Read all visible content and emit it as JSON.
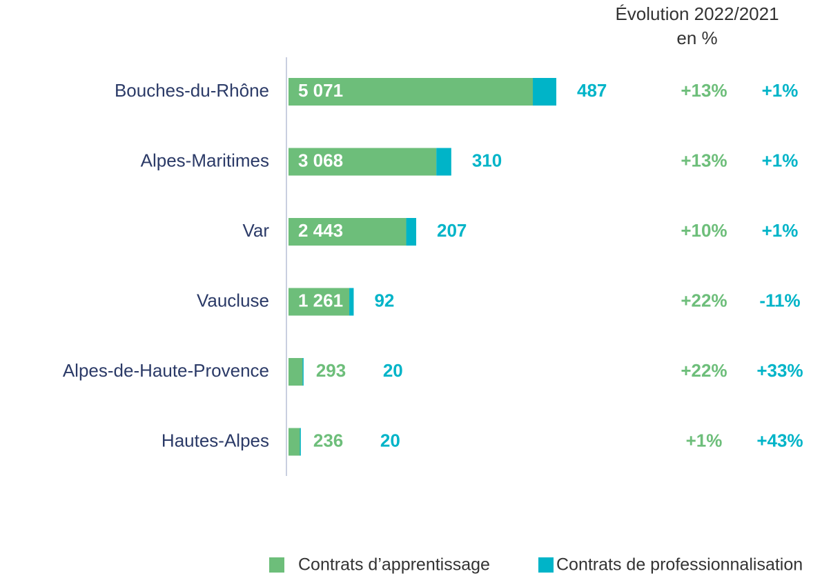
{
  "chart_data": {
    "type": "bar",
    "orientation": "horizontal",
    "stacked": true,
    "evolution_title": [
      "Évolution 2022/2021",
      "en %"
    ],
    "categories": [
      "Bouches-du-Rhône",
      "Alpes-Maritimes",
      "Var",
      "Vaucluse",
      "Alpes-de-Haute-Provence",
      "Hautes-Alpes"
    ],
    "series": [
      {
        "name": "Contrats d’apprentissage",
        "color": "#6dbe7a",
        "values": [
          5071,
          3068,
          2443,
          1261,
          293,
          236
        ],
        "value_labels": [
          "5 071",
          "3 068",
          "2 443",
          "1 261",
          "293",
          "236"
        ],
        "evolution_labels": [
          "+13%",
          "+13%",
          "+10%",
          "+22%",
          "+22%",
          "+1%"
        ]
      },
      {
        "name": "Contrats de professionnalisation",
        "color": "#00b4c8",
        "values": [
          487,
          310,
          207,
          92,
          20,
          20
        ],
        "value_labels": [
          "487",
          "310",
          "207",
          "92",
          "20",
          "20"
        ],
        "evolution_labels": [
          "+1%",
          "+1%",
          "+1%",
          "-11%",
          "+33%",
          "+43%"
        ]
      }
    ],
    "legend": "bottom-right"
  }
}
